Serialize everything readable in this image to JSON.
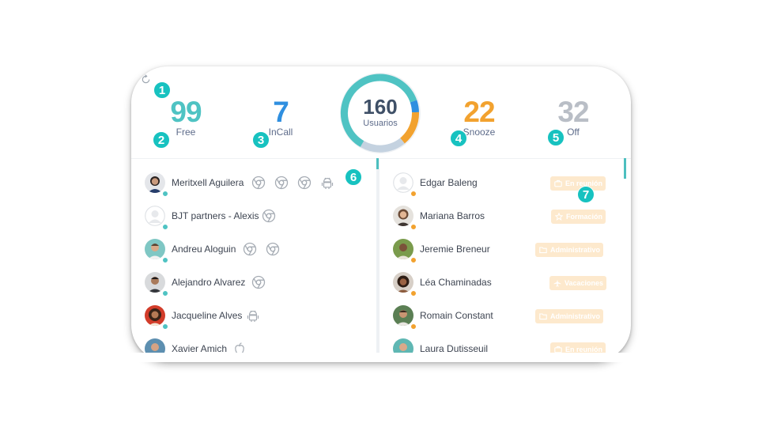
{
  "stats": {
    "free": {
      "value": "99",
      "label": "Free",
      "color": "#4fc3c3"
    },
    "incall": {
      "value": "7",
      "label": "InCall",
      "color": "#2f8fe0"
    },
    "snooze": {
      "value": "22",
      "label": "Snooze",
      "color": "#f2a22f"
    },
    "off": {
      "value": "32",
      "label": "Off",
      "color": "#b9bec6"
    }
  },
  "donut": {
    "total": "160",
    "caption": "Usuarios"
  },
  "markers": [
    "1",
    "2",
    "3",
    "4",
    "5",
    "6",
    "7"
  ],
  "left_list": [
    {
      "name": "Meritxell Aguilera",
      "avatar": "woman-dark",
      "devices": [
        "chrome",
        "chrome",
        "chrome",
        "android"
      ]
    },
    {
      "name": "BJT partners - Alexis",
      "avatar": "placeholder",
      "devices": [
        "chrome"
      ]
    },
    {
      "name": "Andreu Aloguin",
      "avatar": "man-teal",
      "devices": [
        "chrome",
        "chrome"
      ]
    },
    {
      "name": "Alejandro Alvarez",
      "avatar": "man-dark",
      "devices": [
        "chrome"
      ]
    },
    {
      "name": "Jacqueline Alves",
      "avatar": "woman-curly",
      "devices": [
        "android"
      ]
    },
    {
      "name": "Xavier Amich",
      "avatar": "man-blue",
      "devices": [
        "apple"
      ]
    }
  ],
  "right_list": [
    {
      "name": "Edgar Baleng",
      "avatar": "placeholder",
      "status": {
        "icon": "briefcase",
        "label": "En reunión"
      }
    },
    {
      "name": "Mariana Barros",
      "avatar": "woman-light",
      "status": {
        "icon": "star",
        "label": "Formación"
      }
    },
    {
      "name": "Jeremie Breneur",
      "avatar": "man-green",
      "status": {
        "icon": "folder",
        "label": "Administrativo"
      }
    },
    {
      "name": "Léa Chaminadas",
      "avatar": "woman-brown",
      "status": {
        "icon": "plane",
        "label": "Vacaciones"
      }
    },
    {
      "name": "Romain Constant",
      "avatar": "man-grey",
      "status": {
        "icon": "folder",
        "label": "Administrativo"
      }
    },
    {
      "name": "Laura Dutisseuil",
      "avatar": "woman-teal",
      "status": {
        "icon": "briefcase",
        "label": "En reunión"
      }
    }
  ],
  "colors": {
    "free_dot": "#4fc3c3",
    "snooze_dot": "#f2a22f",
    "badge_bg": "#fde9cd",
    "marker": "#17c2c0"
  }
}
